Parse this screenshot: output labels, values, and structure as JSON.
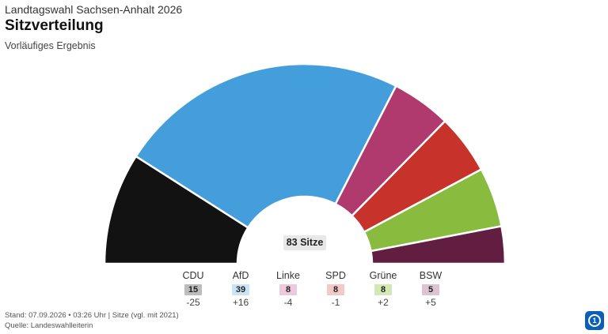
{
  "header": {
    "supertitle": "Landtagswahl Sachsen-Anhalt 2026",
    "title": "Sitzverteilung",
    "subtitle": "Vorläufiges Ergebnis"
  },
  "total_label": "83 Sitze",
  "chart_data": {
    "type": "pie",
    "variant": "semicircle-parliament",
    "title": "Sitzverteilung",
    "subtitle": "Vorläufiges Ergebnis",
    "total_seats": 83,
    "series": [
      {
        "name": "CDU",
        "seats": 15,
        "seats_label": "15",
        "change": "-25",
        "color": "#121212",
        "badge_color": "#bdbdbd"
      },
      {
        "name": "AfD",
        "seats": 39,
        "seats_label": "39",
        "change": "+16",
        "color": "#449edc",
        "badge_color": "#c9e4f6"
      },
      {
        "name": "Linke",
        "seats": 8,
        "seats_label": "8",
        "change": "-4",
        "color": "#b03a6e",
        "badge_color": "#eccadb"
      },
      {
        "name": "SPD",
        "seats": 8,
        "seats_label": "8",
        "change": "-1",
        "color": "#c7322b",
        "badge_color": "#f1c9c6"
      },
      {
        "name": "Grüne",
        "seats": 8,
        "seats_label": "8",
        "change": "+2",
        "color": "#89bb3f",
        "badge_color": "#d3e8b5"
      },
      {
        "name": "BSW",
        "seats": 5,
        "seats_label": "5",
        "change": "+5",
        "color": "#611e40",
        "badge_color": "#dcc5d1"
      }
    ]
  },
  "footer": {
    "line1": "Stand: 07.09.2026 • 03:26 Uhr | Sitze (vgl. mit 2021)",
    "line2": "Quelle: Landeswahlleiterin"
  },
  "logo": {
    "icon": "ard-logo-icon",
    "color": "#0b5fb5"
  }
}
